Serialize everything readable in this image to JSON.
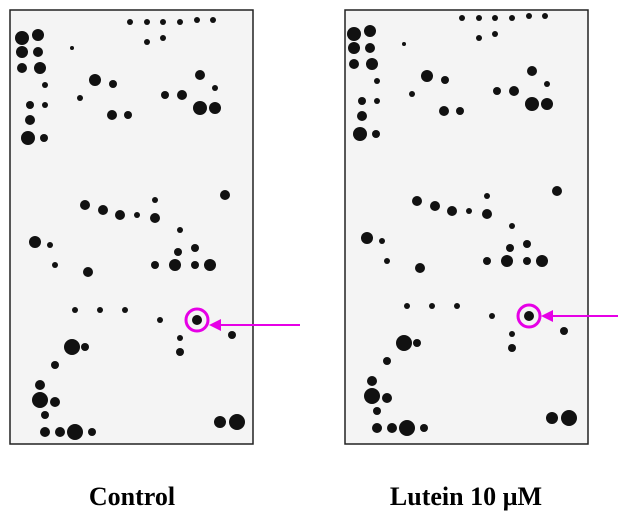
{
  "panels": [
    {
      "label": "Control"
    },
    {
      "label": "Lutein 10 µM"
    }
  ]
}
